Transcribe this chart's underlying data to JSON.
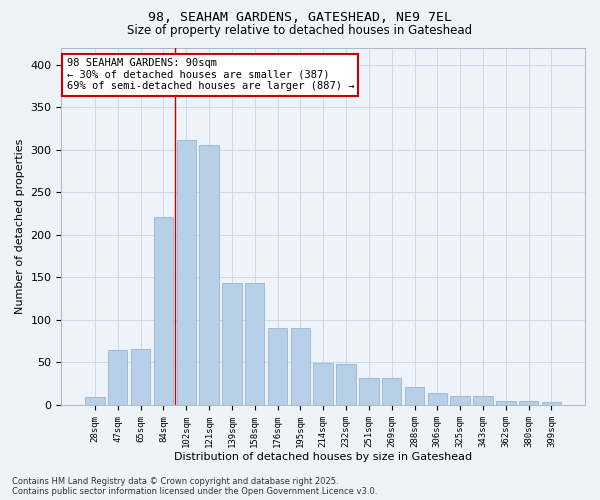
{
  "title_line1": "98, SEAHAM GARDENS, GATESHEAD, NE9 7EL",
  "title_line2": "Size of property relative to detached houses in Gateshead",
  "xlabel": "Distribution of detached houses by size in Gateshead",
  "ylabel": "Number of detached properties",
  "categories": [
    "28sqm",
    "47sqm",
    "65sqm",
    "84sqm",
    "102sqm",
    "121sqm",
    "139sqm",
    "158sqm",
    "176sqm",
    "195sqm",
    "214sqm",
    "232sqm",
    "251sqm",
    "269sqm",
    "288sqm",
    "306sqm",
    "325sqm",
    "343sqm",
    "362sqm",
    "380sqm",
    "399sqm"
  ],
  "values": [
    9,
    65,
    66,
    221,
    311,
    305,
    143,
    143,
    91,
    91,
    49,
    48,
    32,
    32,
    21,
    14,
    11,
    10,
    5,
    5,
    3
  ],
  "bar_color": "#b8cfe8",
  "bar_edge_color": "#8aafd0",
  "grid_color": "#c8d4e8",
  "bg_color": "#eef2f9",
  "annotation_box_text": "98 SEAHAM GARDENS: 90sqm\n← 30% of detached houses are smaller (387)\n69% of semi-detached houses are larger (887) →",
  "annotation_box_color": "#ffffff",
  "annotation_box_edge": "#cc0000",
  "vline_x": 3.5,
  "vline_color": "#cc0000",
  "footer_line1": "Contains HM Land Registry data © Crown copyright and database right 2025.",
  "footer_line2": "Contains public sector information licensed under the Open Government Licence v3.0.",
  "ylim": [
    0,
    420
  ],
  "yticks": [
    0,
    50,
    100,
    150,
    200,
    250,
    300,
    350,
    400
  ]
}
